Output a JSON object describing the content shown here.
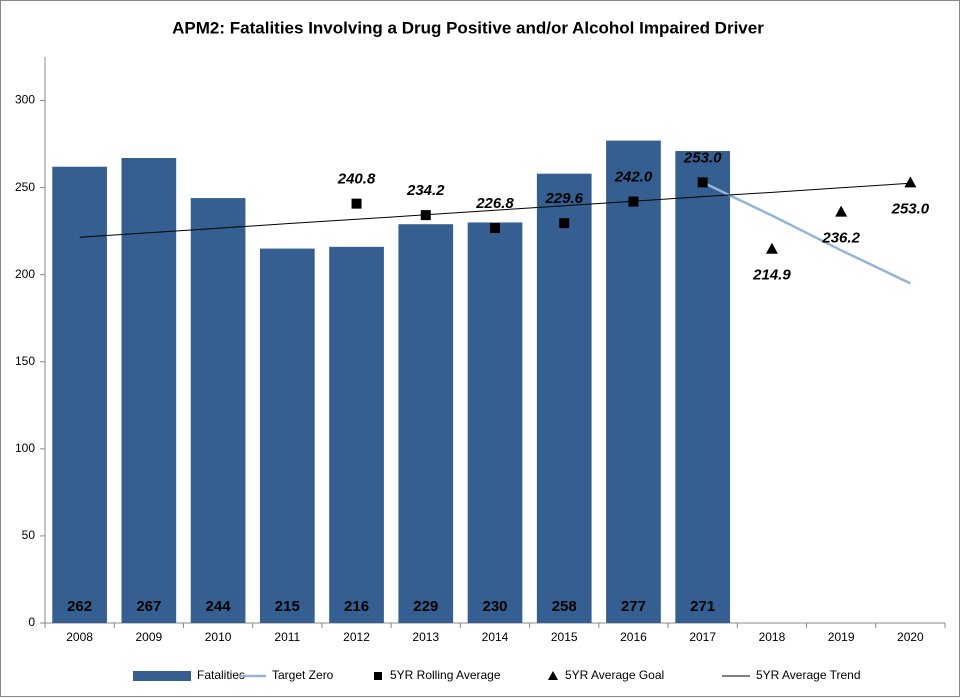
{
  "chart_data": {
    "type": "bar",
    "title": "APM2: Fatalities Involving a Drug Positive and/or Alcohol Impaired Driver",
    "categories": [
      "2008",
      "2009",
      "2010",
      "2011",
      "2012",
      "2013",
      "2014",
      "2015",
      "2016",
      "2017",
      "2018",
      "2019",
      "2020"
    ],
    "ylim": [
      0,
      325
    ],
    "yticks": [
      0,
      50,
      100,
      150,
      200,
      250,
      300
    ],
    "grid": false,
    "series": [
      {
        "name": "Fatalities",
        "kind": "bar",
        "color": "#355f91",
        "values": [
          262,
          267,
          244,
          215,
          216,
          229,
          230,
          258,
          277,
          271,
          null,
          null,
          null
        ],
        "label_position": "base"
      },
      {
        "name": "Target Zero",
        "kind": "line",
        "color": "#95b3d7",
        "values": [
          null,
          null,
          null,
          null,
          null,
          null,
          null,
          null,
          null,
          253,
          234,
          214,
          195
        ]
      },
      {
        "name": "5YR Rolling Average",
        "kind": "marker",
        "marker": "square",
        "color": "#000000",
        "values": [
          null,
          null,
          null,
          null,
          240.8,
          234.2,
          226.8,
          229.6,
          242.0,
          253.0,
          null,
          null,
          null
        ],
        "value_labels": [
          null,
          null,
          null,
          null,
          "240.8",
          "234.2",
          "226.8",
          "229.6",
          "242.0",
          "253.0",
          null,
          null,
          null
        ],
        "label_position": "above"
      },
      {
        "name": "5YR Average Goal",
        "kind": "marker",
        "marker": "triangle",
        "color": "#000000",
        "values": [
          null,
          null,
          null,
          null,
          null,
          null,
          null,
          null,
          null,
          null,
          214.9,
          236.2,
          253.0
        ],
        "value_labels": [
          null,
          null,
          null,
          null,
          null,
          null,
          null,
          null,
          null,
          null,
          "214.9",
          "236.2",
          "253.0"
        ],
        "label_position": "below"
      },
      {
        "name": "5YR Average Trend",
        "kind": "line",
        "color": "#000000",
        "values": [
          221.5,
          224.1,
          226.7,
          229.3,
          231.8,
          234.4,
          237.0,
          239.6,
          242.2,
          244.8,
          247.3,
          249.9,
          252.5
        ]
      }
    ]
  }
}
